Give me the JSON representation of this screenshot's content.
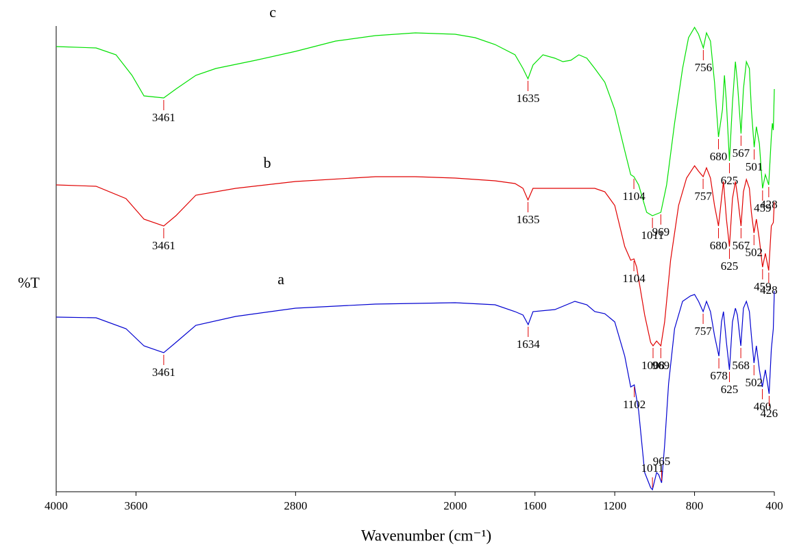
{
  "chart_data": {
    "type": "line",
    "x_label": "Wavenumber (cm⁻¹)",
    "y_label": "%T",
    "xlim": [
      4000,
      400
    ],
    "ylim": [
      0,
      680
    ],
    "xticks": [
      4000,
      3600,
      2800,
      2000,
      1600,
      1200,
      800,
      400
    ],
    "peak_marker_color": "#e00000",
    "series": [
      {
        "name": "c",
        "color": "#00e000",
        "x": [
          4000,
          3800,
          3700,
          3620,
          3560,
          3461,
          3400,
          3300,
          3200,
          3000,
          2800,
          2600,
          2400,
          2200,
          2000,
          1900,
          1800,
          1700,
          1660,
          1635,
          1610,
          1560,
          1500,
          1460,
          1420,
          1380,
          1340,
          1300,
          1250,
          1200,
          1150,
          1120,
          1104,
          1080,
          1040,
          1011,
          969,
          940,
          900,
          860,
          830,
          800,
          780,
          756,
          740,
          720,
          700,
          680,
          660,
          650,
          640,
          625,
          610,
          595,
          585,
          567,
          555,
          540,
          525,
          515,
          501,
          490,
          475,
          459,
          445,
          428,
          415,
          410,
          405,
          400
        ],
        "values": [
          650,
          648,
          638,
          608,
          578,
          575,
          588,
          608,
          618,
          630,
          643,
          658,
          666,
          670,
          668,
          663,
          653,
          638,
          618,
          603,
          623,
          638,
          633,
          628,
          630,
          638,
          633,
          618,
          598,
          558,
          498,
          463,
          460,
          448,
          408,
          403,
          408,
          448,
          538,
          618,
          663,
          678,
          668,
          648,
          670,
          658,
          598,
          518,
          558,
          608,
          568,
          483,
          568,
          628,
          598,
          523,
          588,
          628,
          618,
          558,
          503,
          533,
          508,
          443,
          463,
          448,
          518,
          538,
          528,
          588
        ],
        "peaks": [
          3461,
          1635,
          1104,
          1011,
          969,
          756,
          680,
          625,
          567,
          501,
          459,
          428
        ]
      },
      {
        "name": "b",
        "color": "#e00000",
        "x": [
          4000,
          3800,
          3650,
          3560,
          3461,
          3400,
          3300,
          3100,
          2800,
          2400,
          2200,
          2000,
          1800,
          1700,
          1660,
          1635,
          1610,
          1500,
          1300,
          1250,
          1200,
          1150,
          1120,
          1104,
          1090,
          1050,
          1020,
          1008,
          990,
          969,
          950,
          920,
          880,
          840,
          800,
          780,
          757,
          740,
          720,
          700,
          680,
          665,
          655,
          640,
          625,
          610,
          595,
          585,
          567,
          555,
          540,
          525,
          515,
          502,
          490,
          475,
          459,
          445,
          428,
          415,
          405,
          400
        ],
        "values": [
          448,
          446,
          428,
          398,
          388,
          403,
          433,
          443,
          453,
          460,
          460,
          458,
          454,
          450,
          443,
          426,
          443,
          443,
          443,
          438,
          418,
          358,
          338,
          340,
          328,
          258,
          218,
          213,
          220,
          213,
          248,
          338,
          418,
          458,
          476,
          468,
          460,
          473,
          458,
          418,
          388,
          428,
          453,
          398,
          358,
          428,
          453,
          433,
          388,
          438,
          456,
          443,
          408,
          378,
          398,
          368,
          328,
          348,
          323,
          388,
          393,
          423
        ],
        "peaks": [
          3461,
          1635,
          1104,
          1008,
          969,
          757,
          680,
          625,
          567,
          502,
          459,
          428
        ]
      },
      {
        "name": "a",
        "color": "#0000d0",
        "x": [
          4000,
          3800,
          3650,
          3560,
          3461,
          3400,
          3300,
          3100,
          2800,
          2400,
          2000,
          1800,
          1700,
          1660,
          1634,
          1610,
          1500,
          1400,
          1340,
          1300,
          1250,
          1200,
          1150,
          1120,
          1102,
          1080,
          1050,
          1020,
          1011,
          990,
          980,
          965,
          950,
          930,
          900,
          860,
          820,
          800,
          780,
          757,
          740,
          720,
          700,
          678,
          665,
          655,
          640,
          625,
          610,
          595,
          585,
          568,
          555,
          540,
          525,
          515,
          502,
          490,
          475,
          460,
          445,
          426,
          415,
          405,
          400
        ],
        "values": [
          255,
          254,
          238,
          213,
          203,
          218,
          243,
          256,
          268,
          274,
          276,
          273,
          263,
          258,
          244,
          263,
          266,
          278,
          273,
          263,
          260,
          248,
          198,
          153,
          156,
          118,
          28,
          6,
          3,
          28,
          25,
          13,
          68,
          158,
          238,
          278,
          286,
          288,
          278,
          263,
          278,
          263,
          228,
          198,
          248,
          263,
          218,
          178,
          248,
          268,
          258,
          213,
          268,
          278,
          263,
          228,
          188,
          213,
          178,
          153,
          178,
          143,
          208,
          238,
          293
        ],
        "peaks": [
          3461,
          1634,
          1102,
          1011,
          965,
          757,
          678,
          625,
          568,
          502,
          460,
          426
        ]
      }
    ]
  }
}
